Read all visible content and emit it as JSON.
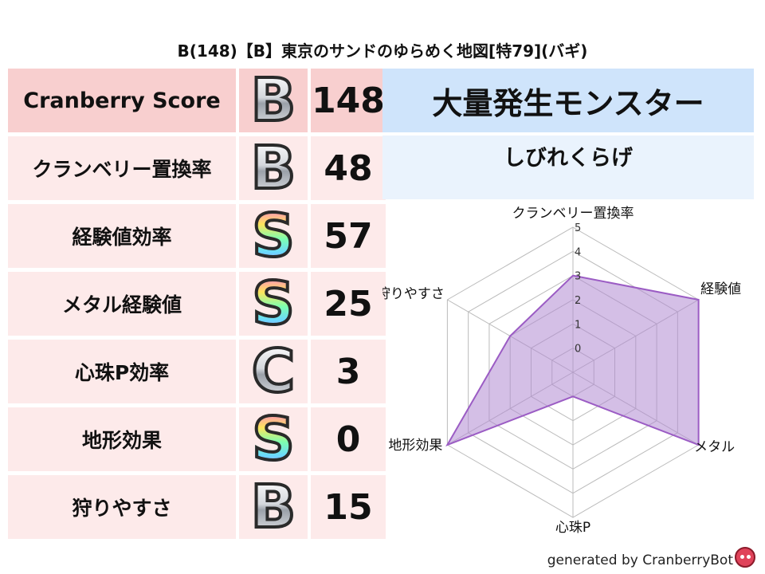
{
  "title": "B(148)【B】東京のサンドのゆらめく地図[特79](バギ)",
  "rows": [
    {
      "label": "Cranberry Score",
      "grade": "B",
      "value": "148"
    },
    {
      "label": "クランベリー置換率",
      "grade": "B",
      "value": "48"
    },
    {
      "label": "経験値効率",
      "grade": "S",
      "value": "57"
    },
    {
      "label": "メタル経験値",
      "grade": "S",
      "value": "25"
    },
    {
      "label": "心珠P効率",
      "grade": "C",
      "value": "3"
    },
    {
      "label": "地形効果",
      "grade": "S",
      "value": "0"
    },
    {
      "label": "狩りやすさ",
      "grade": "B",
      "value": "15"
    }
  ],
  "monster": {
    "heading": "大量発生モンスター",
    "name": "しびれくらげ"
  },
  "chart_data": {
    "type": "radar",
    "axes": [
      "クランベリー置換率",
      "経験値",
      "メタル",
      "心珠P",
      "地形効果",
      "狩りやすさ"
    ],
    "ticks": [
      "0",
      "1",
      "2",
      "3",
      "4",
      "5"
    ],
    "range": [
      0,
      5
    ],
    "values": [
      3.0,
      5.0,
      5.0,
      0.0,
      5.0,
      2.0
    ],
    "colors": {
      "fill": "#b08ad1",
      "stroke": "#9b5cc4"
    }
  },
  "footer": "generated by CranberryBot"
}
